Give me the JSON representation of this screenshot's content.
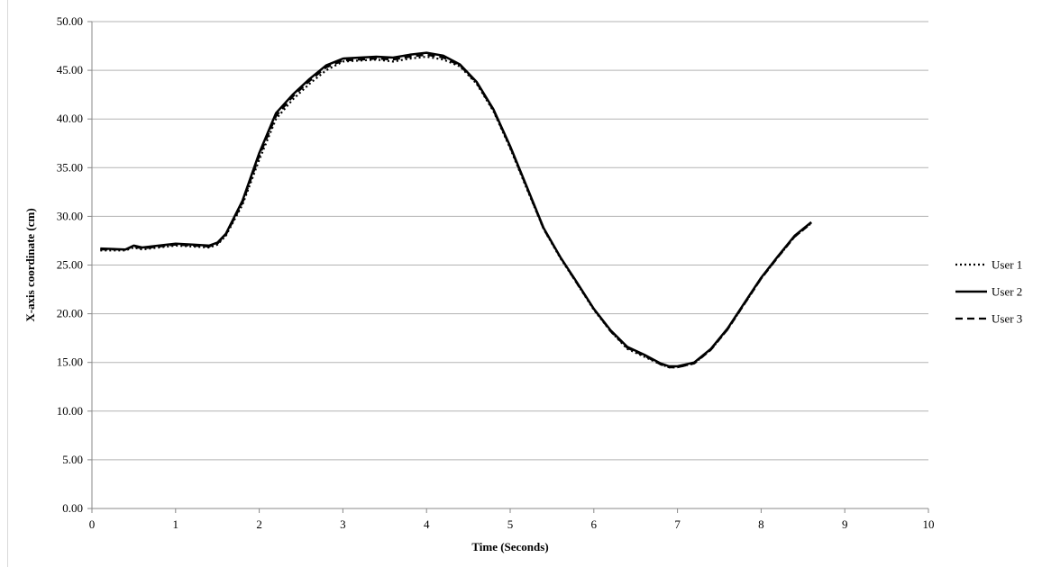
{
  "chart_data": {
    "type": "line",
    "title": "",
    "xlabel": "Time (Seconds)",
    "ylabel": "X-axis coordinate (cm)",
    "xlim": [
      0,
      10
    ],
    "ylim": [
      0,
      50
    ],
    "xticks": [
      "0",
      "1",
      "2",
      "3",
      "4",
      "5",
      "6",
      "7",
      "8",
      "9",
      "10"
    ],
    "yticks": [
      "0.00",
      "5.00",
      "10.00",
      "15.00",
      "20.00",
      "25.00",
      "30.00",
      "35.00",
      "40.00",
      "45.00",
      "50.00"
    ],
    "grid": "horizontal",
    "legend_position": "right",
    "series": [
      {
        "name": "User 1",
        "style": "dotted",
        "color": "#000000",
        "x": [
          0.1,
          0.4,
          0.5,
          0.6,
          0.8,
          1.0,
          1.2,
          1.4,
          1.5,
          1.6,
          1.8,
          2.0,
          2.2,
          2.4,
          2.6,
          2.8,
          3.0,
          3.2,
          3.4,
          3.6,
          3.8,
          4.0,
          4.2,
          4.4,
          4.6,
          4.8,
          5.0,
          5.2,
          5.4,
          5.6,
          5.8,
          6.0,
          6.2,
          6.4,
          6.6,
          6.8,
          6.9,
          7.0,
          7.2,
          7.4,
          7.6,
          7.8,
          8.0,
          8.2,
          8.4,
          8.6
        ],
        "y": [
          26.5,
          26.5,
          26.8,
          26.6,
          26.8,
          27.0,
          26.9,
          26.8,
          27.1,
          28.0,
          31.2,
          35.8,
          40.0,
          42.0,
          43.6,
          45.0,
          45.9,
          46.0,
          46.1,
          45.9,
          46.2,
          46.4,
          46.1,
          45.4,
          43.6,
          40.8,
          37.0,
          32.8,
          28.7,
          25.7,
          23.1,
          20.4,
          18.2,
          16.4,
          15.6,
          14.8,
          14.5,
          14.5,
          14.9,
          16.3,
          18.4,
          21.0,
          23.6,
          25.8,
          27.9,
          29.3
        ]
      },
      {
        "name": "User 2",
        "style": "solid",
        "color": "#000000",
        "x": [
          0.1,
          0.4,
          0.5,
          0.6,
          0.8,
          1.0,
          1.2,
          1.4,
          1.5,
          1.6,
          1.8,
          2.0,
          2.2,
          2.4,
          2.6,
          2.8,
          3.0,
          3.2,
          3.4,
          3.6,
          3.8,
          4.0,
          4.2,
          4.4,
          4.6,
          4.8,
          5.0,
          5.2,
          5.4,
          5.6,
          5.8,
          6.0,
          6.2,
          6.4,
          6.6,
          6.8,
          6.9,
          7.0,
          7.2,
          7.4,
          7.6,
          7.8,
          8.0,
          8.2,
          8.4,
          8.6
        ],
        "y": [
          26.7,
          26.6,
          27.0,
          26.8,
          27.0,
          27.2,
          27.1,
          27.0,
          27.3,
          28.2,
          31.6,
          36.5,
          40.6,
          42.5,
          44.1,
          45.5,
          46.2,
          46.3,
          46.4,
          46.3,
          46.6,
          46.8,
          46.5,
          45.6,
          43.8,
          41.0,
          37.2,
          33.0,
          28.8,
          25.8,
          23.2,
          20.5,
          18.3,
          16.6,
          15.8,
          14.9,
          14.6,
          14.6,
          15.0,
          16.4,
          18.5,
          21.1,
          23.7,
          25.9,
          28.0,
          29.4
        ]
      },
      {
        "name": "User 3",
        "style": "dashed",
        "color": "#000000",
        "x": [
          0.1,
          0.4,
          0.5,
          0.6,
          0.8,
          1.0,
          1.2,
          1.4,
          1.5,
          1.6,
          1.8,
          2.0,
          2.2,
          2.4,
          2.6,
          2.8,
          3.0,
          3.2,
          3.4,
          3.6,
          3.8,
          4.0,
          4.2,
          4.4,
          4.6,
          4.8,
          5.0,
          5.2,
          5.4,
          5.6,
          5.8,
          6.0,
          6.2,
          6.4,
          6.6,
          6.8,
          6.9,
          7.0,
          7.2,
          7.4,
          7.6,
          7.8,
          8.0,
          8.2,
          8.4,
          8.6
        ],
        "y": [
          26.6,
          26.6,
          26.9,
          26.7,
          26.9,
          27.1,
          27.0,
          26.9,
          27.2,
          28.1,
          31.4,
          36.2,
          40.3,
          42.3,
          43.9,
          45.3,
          46.0,
          46.1,
          46.2,
          46.1,
          46.4,
          46.6,
          46.3,
          45.5,
          43.7,
          40.9,
          37.1,
          32.9,
          28.7,
          25.8,
          23.1,
          20.5,
          18.2,
          16.5,
          15.7,
          14.8,
          14.5,
          14.5,
          14.9,
          16.3,
          18.4,
          21.0,
          23.6,
          25.8,
          27.9,
          29.3
        ]
      }
    ]
  }
}
